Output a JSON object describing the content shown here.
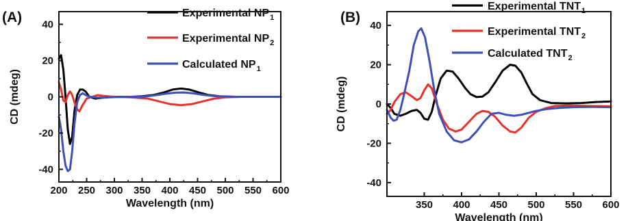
{
  "chart_data": [
    {
      "type": "line",
      "panel_label": "(A)",
      "xlabel": "Wavelength (nm)",
      "ylabel": "CD (mdeg)",
      "xlim": [
        200,
        600
      ],
      "ylim": [
        -47,
        47
      ],
      "xticks": [
        200,
        250,
        300,
        350,
        400,
        450,
        500,
        550,
        600
      ],
      "yticks": [
        -40,
        -20,
        0,
        20,
        40
      ],
      "legend_position": "top-right",
      "series": [
        {
          "name": "Experimental NP",
          "name_main": "Experimental NP",
          "name_sub": "1",
          "color": "#000000",
          "points": [
            [
              200,
              21
            ],
            [
              204,
              23
            ],
            [
              208,
              15
            ],
            [
              212,
              0
            ],
            [
              216,
              -18
            ],
            [
              220,
              -26
            ],
            [
              224,
              -22
            ],
            [
              228,
              -8
            ],
            [
              233,
              1
            ],
            [
              238,
              4
            ],
            [
              243,
              4
            ],
            [
              248,
              3
            ],
            [
              255,
              0
            ],
            [
              265,
              -1
            ],
            [
              280,
              -0.5
            ],
            [
              300,
              0
            ],
            [
              330,
              0
            ],
            [
              350,
              0.3
            ],
            [
              370,
              1
            ],
            [
              390,
              2.5
            ],
            [
              405,
              4
            ],
            [
              420,
              4.6
            ],
            [
              435,
              4
            ],
            [
              450,
              2.6
            ],
            [
              470,
              1
            ],
            [
              490,
              0.3
            ],
            [
              520,
              0
            ],
            [
              560,
              0
            ],
            [
              600,
              0
            ]
          ]
        },
        {
          "name": "Experimental NP",
          "name_main": "Experimental NP",
          "name_sub": "2",
          "color": "#e8312b",
          "points": [
            [
              200,
              8
            ],
            [
              204,
              4
            ],
            [
              208,
              -2
            ],
            [
              212,
              -3
            ],
            [
              216,
              1
            ],
            [
              220,
              3
            ],
            [
              224,
              1
            ],
            [
              228,
              -3
            ],
            [
              233,
              -7
            ],
            [
              237,
              -8
            ],
            [
              242,
              -5
            ],
            [
              250,
              -1
            ],
            [
              260,
              0
            ],
            [
              270,
              1
            ],
            [
              280,
              0.5
            ],
            [
              300,
              0
            ],
            [
              330,
              -0.3
            ],
            [
              360,
              -1
            ],
            [
              380,
              -2.5
            ],
            [
              400,
              -4
            ],
            [
              420,
              -4.6
            ],
            [
              440,
              -4
            ],
            [
              460,
              -2.5
            ],
            [
              480,
              -1
            ],
            [
              500,
              -0.3
            ],
            [
              530,
              0
            ],
            [
              570,
              0
            ],
            [
              600,
              0
            ]
          ]
        },
        {
          "name": "Calculated NP",
          "name_main": "Calculated NP",
          "name_sub": "1",
          "color": "#3f4fb8",
          "points": [
            [
              200,
              -11
            ],
            [
              204,
              -18
            ],
            [
              208,
              -30
            ],
            [
              212,
              -38
            ],
            [
              216,
              -41
            ],
            [
              220,
              -40
            ],
            [
              224,
              -30
            ],
            [
              228,
              -15
            ],
            [
              233,
              -3
            ],
            [
              238,
              1
            ],
            [
              243,
              2
            ],
            [
              248,
              1
            ],
            [
              255,
              0
            ],
            [
              270,
              -0.5
            ],
            [
              290,
              -0.3
            ],
            [
              320,
              0
            ],
            [
              350,
              0
            ],
            [
              370,
              0.7
            ],
            [
              390,
              1.6
            ],
            [
              410,
              2.3
            ],
            [
              425,
              2.4
            ],
            [
              440,
              2
            ],
            [
              460,
              1.1
            ],
            [
              480,
              0.4
            ],
            [
              510,
              0
            ],
            [
              560,
              0
            ],
            [
              600,
              0
            ]
          ]
        }
      ]
    },
    {
      "type": "line",
      "panel_label": "(B)",
      "xlabel": "Wavelength (nm)",
      "ylabel": "CD (mdeg)",
      "xlim": [
        300,
        600
      ],
      "ylim": [
        -47,
        47
      ],
      "xticks": [
        350,
        400,
        450,
        500,
        550,
        600
      ],
      "yticks": [
        -40,
        -20,
        0,
        20,
        40
      ],
      "legend_position": "top-right",
      "series": [
        {
          "name": "Experimental TNT",
          "name_main": "Experimental TNT",
          "name_sub": "1",
          "color": "#000000",
          "points": [
            [
              300,
              0
            ],
            [
              305,
              -2
            ],
            [
              310,
              -5
            ],
            [
              318,
              -6
            ],
            [
              325,
              -5
            ],
            [
              333,
              -3.5
            ],
            [
              340,
              -3
            ],
            [
              345,
              -4.5
            ],
            [
              350,
              -7.5
            ],
            [
              355,
              -8
            ],
            [
              360,
              -4
            ],
            [
              365,
              4
            ],
            [
              372,
              13
            ],
            [
              380,
              17
            ],
            [
              388,
              16.5
            ],
            [
              396,
              13
            ],
            [
              405,
              8
            ],
            [
              412,
              5
            ],
            [
              420,
              3.5
            ],
            [
              428,
              3.8
            ],
            [
              436,
              6
            ],
            [
              445,
              11
            ],
            [
              455,
              17
            ],
            [
              465,
              20
            ],
            [
              472,
              19.5
            ],
            [
              480,
              16
            ],
            [
              488,
              10
            ],
            [
              495,
              5
            ],
            [
              505,
              2
            ],
            [
              520,
              0.5
            ],
            [
              540,
              0.3
            ],
            [
              560,
              0.5
            ],
            [
              580,
              1
            ],
            [
              600,
              1.3
            ]
          ]
        },
        {
          "name": "Experimental TNT",
          "name_main": "Experimental TNT",
          "name_sub": "2",
          "color": "#e8312b",
          "points": [
            [
              300,
              -5
            ],
            [
              305,
              -3
            ],
            [
              310,
              1
            ],
            [
              318,
              5
            ],
            [
              325,
              6
            ],
            [
              333,
              4
            ],
            [
              340,
              2
            ],
            [
              345,
              3
            ],
            [
              350,
              7
            ],
            [
              355,
              10
            ],
            [
              360,
              8
            ],
            [
              367,
              0
            ],
            [
              375,
              -8
            ],
            [
              383,
              -12.5
            ],
            [
              392,
              -14
            ],
            [
              400,
              -13
            ],
            [
              410,
              -9
            ],
            [
              420,
              -5
            ],
            [
              428,
              -3.5
            ],
            [
              436,
              -4
            ],
            [
              445,
              -6.5
            ],
            [
              455,
              -11
            ],
            [
              465,
              -14
            ],
            [
              472,
              -14.5
            ],
            [
              480,
              -12
            ],
            [
              490,
              -7
            ],
            [
              500,
              -4
            ],
            [
              512,
              -2.2
            ],
            [
              525,
              -1
            ],
            [
              545,
              -0.8
            ],
            [
              570,
              -1
            ],
            [
              600,
              -1.2
            ]
          ]
        },
        {
          "name": "Calculated TNT",
          "name_main": "Calculated TNT",
          "name_sub": "2",
          "color": "#3f4fb8",
          "points": [
            [
              300,
              -3
            ],
            [
              305,
              -7
            ],
            [
              309,
              -8.5
            ],
            [
              313,
              -8
            ],
            [
              318,
              -3
            ],
            [
              323,
              5
            ],
            [
              330,
              17
            ],
            [
              336,
              30
            ],
            [
              342,
              37
            ],
            [
              346,
              38.5
            ],
            [
              351,
              34
            ],
            [
              357,
              22
            ],
            [
              363,
              8
            ],
            [
              370,
              -5
            ],
            [
              380,
              -14
            ],
            [
              390,
              -18.5
            ],
            [
              400,
              -19.5
            ],
            [
              410,
              -18
            ],
            [
              420,
              -14
            ],
            [
              430,
              -9
            ],
            [
              440,
              -5
            ],
            [
              450,
              -4.5
            ],
            [
              460,
              -5.5
            ],
            [
              470,
              -6
            ],
            [
              480,
              -5.5
            ],
            [
              490,
              -4.5
            ],
            [
              500,
              -3.5
            ],
            [
              515,
              -2.5
            ],
            [
              530,
              -2
            ],
            [
              550,
              -1.6
            ],
            [
              575,
              -1.5
            ],
            [
              600,
              -1.6
            ]
          ]
        }
      ]
    }
  ]
}
